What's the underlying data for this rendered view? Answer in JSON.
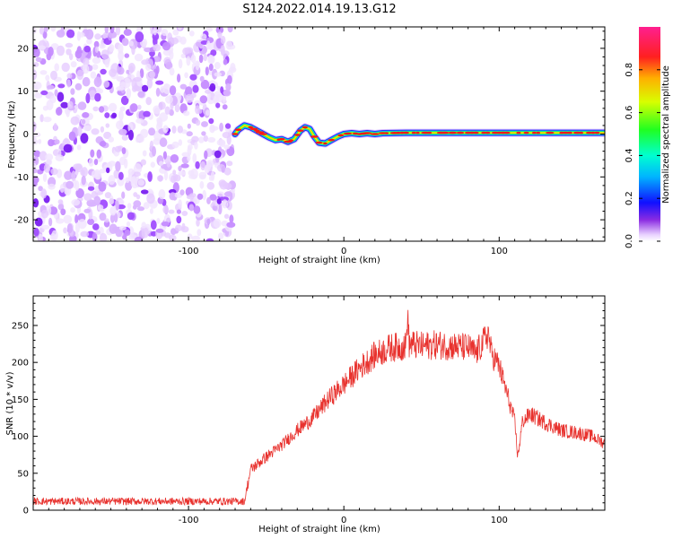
{
  "title": "S124.2022.014.19.13.G12",
  "spectrogram": {
    "type": "heatmap",
    "xlabel": "Height of straight line (km)",
    "ylabel": "Frequency (Hz)",
    "xlim": [
      -200,
      168
    ],
    "ylim": [
      -25,
      25
    ],
    "xticks": [
      -100,
      0,
      100
    ],
    "yticks": [
      -20,
      -10,
      0,
      10,
      20
    ],
    "noise_region_x": [
      -200,
      -70
    ],
    "ridge": [
      [
        -70,
        0.0
      ],
      [
        -68,
        1.0
      ],
      [
        -64,
        2.0
      ],
      [
        -60,
        1.6
      ],
      [
        -56,
        0.8
      ],
      [
        -52,
        0.0
      ],
      [
        -48,
        -0.8
      ],
      [
        -44,
        -1.4
      ],
      [
        -40,
        -1.2
      ],
      [
        -36,
        -1.8
      ],
      [
        -32,
        -1.2
      ],
      [
        -28,
        0.8
      ],
      [
        -25,
        1.6
      ],
      [
        -22,
        1.2
      ],
      [
        -19,
        -0.6
      ],
      [
        -16,
        -2.0
      ],
      [
        -12,
        -2.2
      ],
      [
        -8,
        -1.4
      ],
      [
        -4,
        -0.6
      ],
      [
        0,
        0.0
      ],
      [
        5,
        0.2
      ],
      [
        10,
        0.0
      ],
      [
        15,
        0.2
      ],
      [
        20,
        0.0
      ],
      [
        25,
        0.2
      ],
      [
        40,
        0.3
      ],
      [
        80,
        0.3
      ],
      [
        120,
        0.3
      ],
      [
        168,
        0.3
      ]
    ]
  },
  "colorbar": {
    "label": "Normalized spectral amplitude",
    "ticks": [
      "0.0",
      "0.2",
      "0.4",
      "0.6",
      "0.8"
    ],
    "range": [
      0,
      1
    ]
  },
  "chart_data": {
    "type": "line",
    "xlabel": "Height of straight line (km)",
    "ylabel": "SNR (10 * v/v)",
    "xlim": [
      -200,
      168
    ],
    "ylim": [
      0,
      290
    ],
    "xticks": [
      -100,
      0,
      100
    ],
    "yticks": [
      0,
      50,
      100,
      150,
      200,
      250
    ],
    "color": "#e8322e",
    "series": [
      {
        "x": [
          -200,
          -180,
          -160,
          -140,
          -120,
          -100,
          -80,
          -64,
          -60,
          -50,
          -40,
          -30,
          -20,
          -10,
          0,
          10,
          20,
          30,
          40,
          41,
          42,
          50,
          60,
          70,
          80,
          85,
          90,
          93,
          95,
          100,
          105,
          110,
          112,
          115,
          120,
          130,
          140,
          150,
          160,
          168
        ],
        "values": [
          12,
          12,
          12,
          12,
          12,
          12,
          12,
          12,
          55,
          72,
          88,
          108,
          125,
          150,
          170,
          192,
          210,
          220,
          222,
          268,
          225,
          222,
          224,
          222,
          220,
          212,
          228,
          240,
          212,
          195,
          158,
          120,
          72,
          120,
          130,
          118,
          108,
          105,
          100,
          90
        ]
      }
    ]
  },
  "subplot_bottom_xlabel": "Height of straight line (km)"
}
